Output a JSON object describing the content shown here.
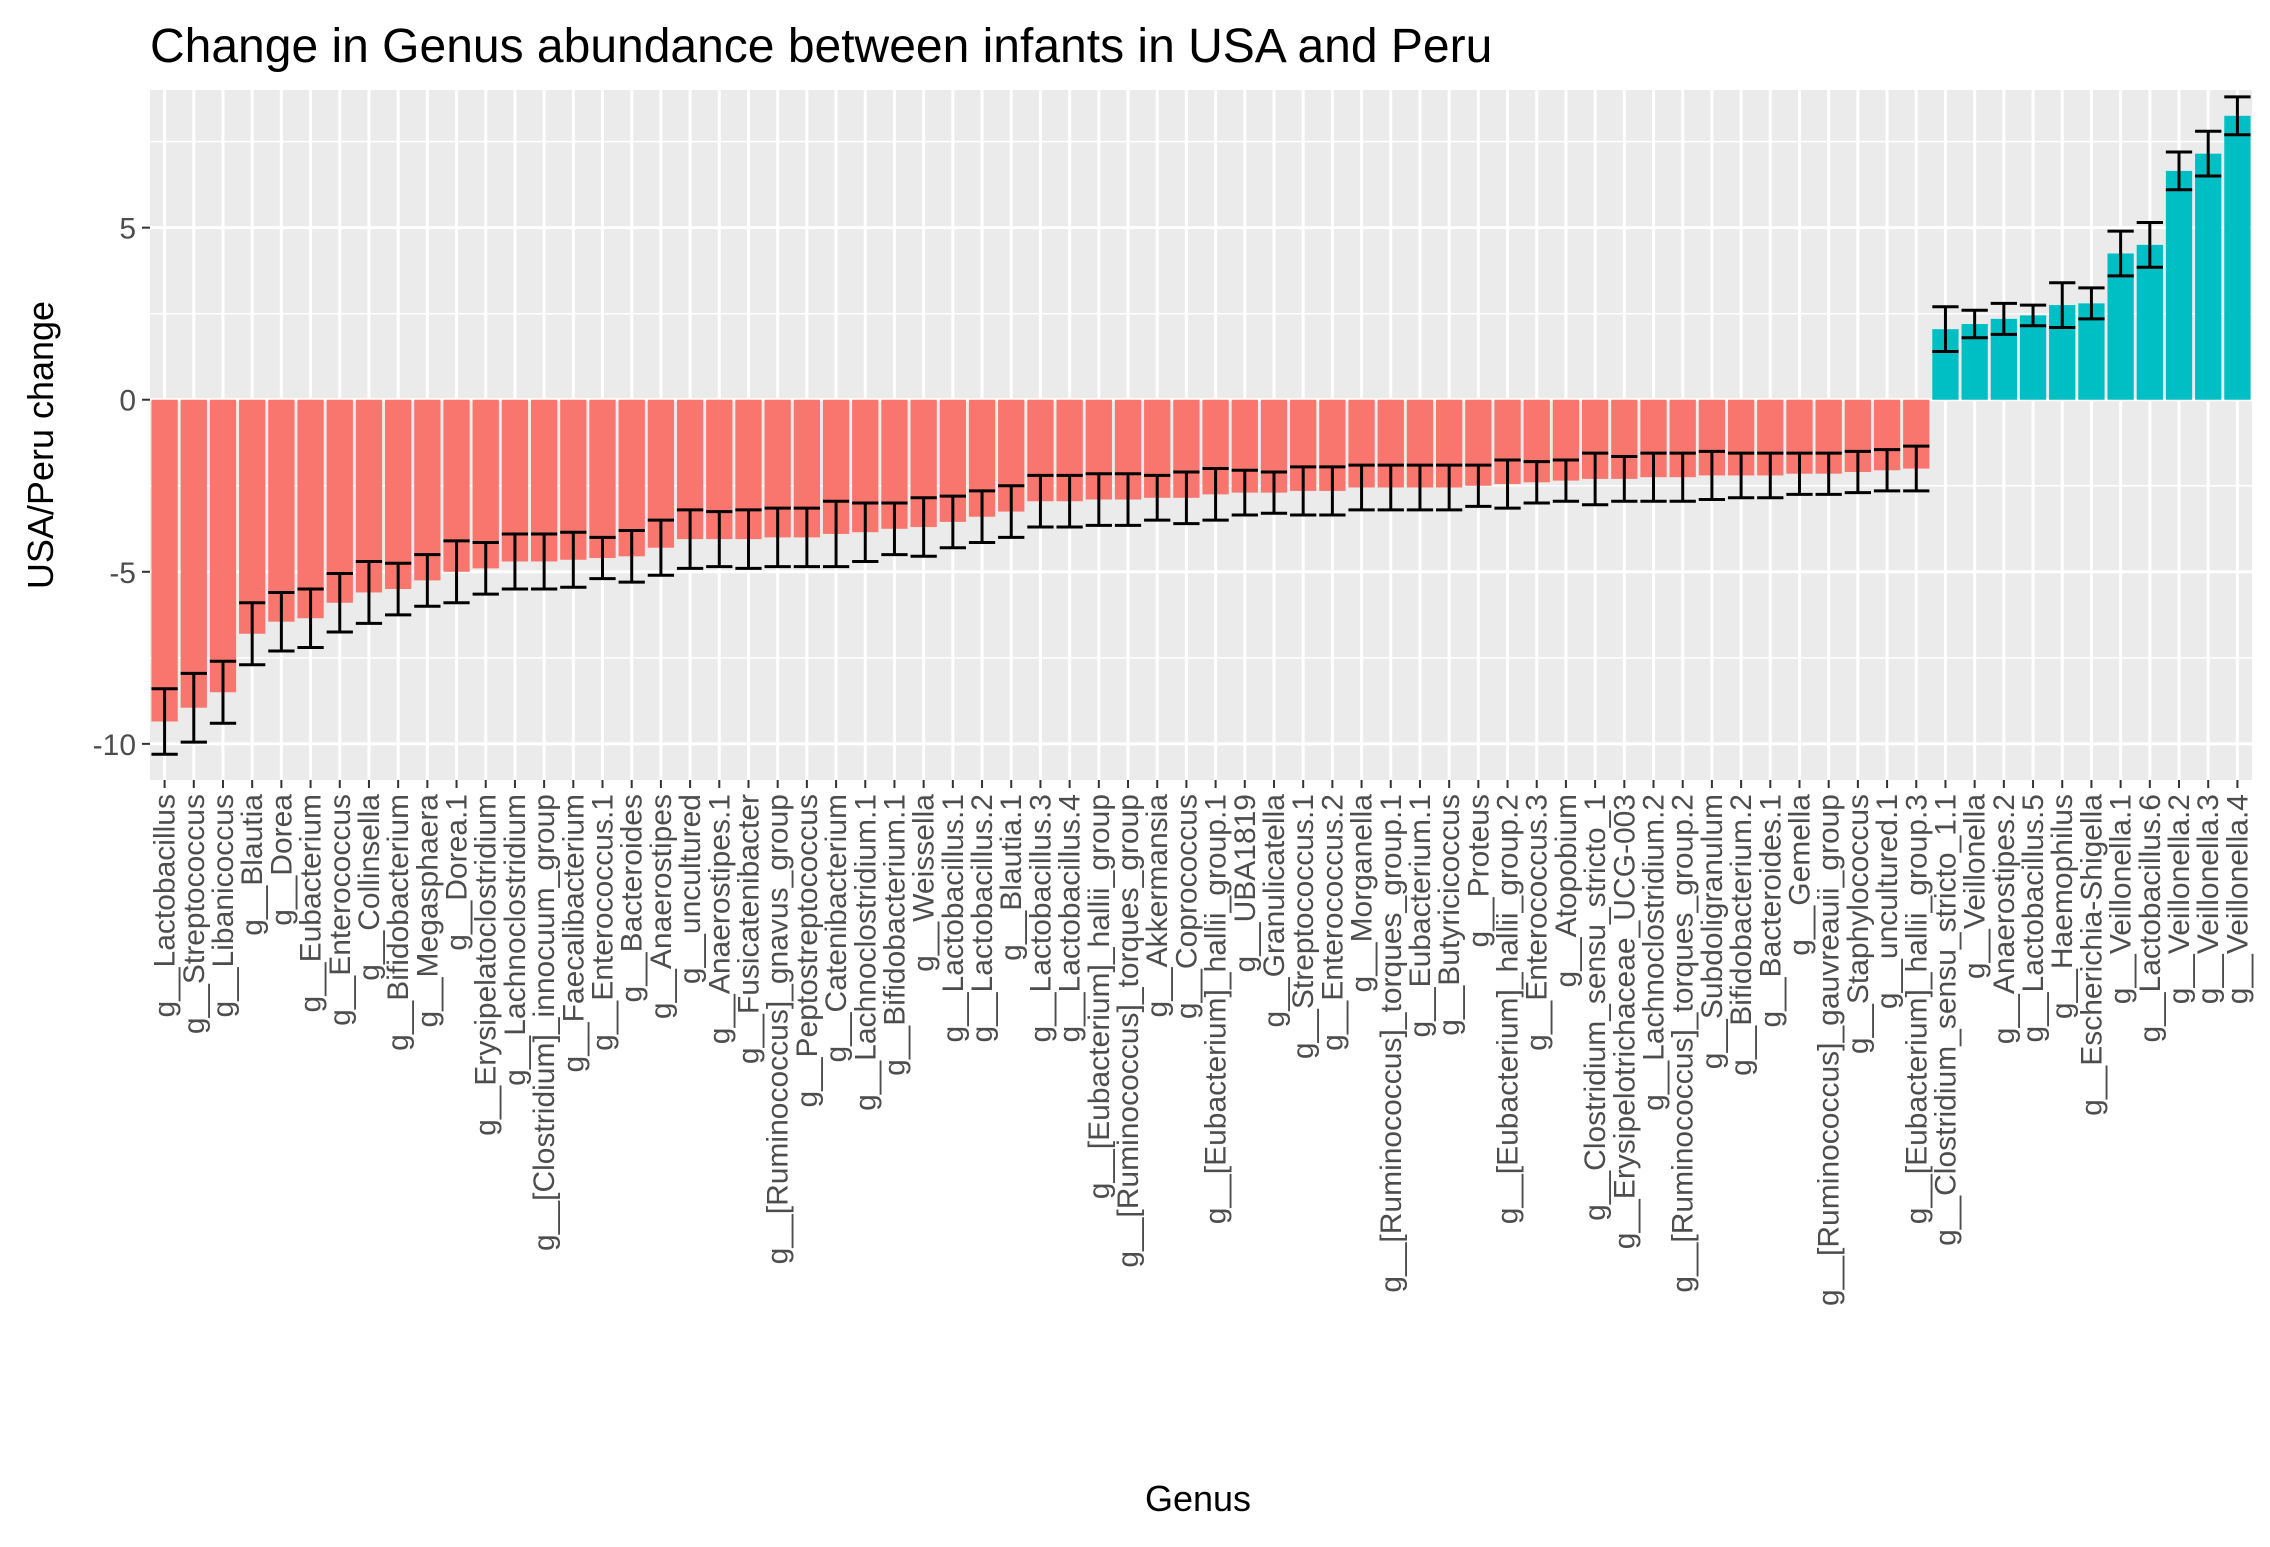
{
  "chart_data": {
    "type": "bar",
    "title": "Change in Genus abundance between infants in USA and Peru",
    "xlabel": "Genus",
    "ylabel": "USA/Peru change",
    "ylim": [
      -11.05,
      9.0
    ],
    "yticks": [
      -10,
      -5,
      0,
      5
    ],
    "grid": true,
    "legend": "none",
    "colors": {
      "negative": "#F8766D",
      "positive": "#00BFC4",
      "panel": "#EBEBEB",
      "grid": "#FFFFFF",
      "errorbar": "#000000"
    },
    "categories": [
      "g__Lactobacillus",
      "g__Streptococcus",
      "g__Libanicoccus",
      "g__Blautia",
      "g__Dorea",
      "g__Eubacterium",
      "g__Enterococcus",
      "g__Collinsella",
      "g__Bifidobacterium",
      "g__Megasphaera",
      "g__Dorea.1",
      "g__Erysipelatoclostridium",
      "g__Lachnoclostridium",
      "g__[Clostridium]_innocuum_group",
      "g__Faecalibacterium",
      "g__Enterococcus.1",
      "g__Bacteroides",
      "g__Anaerostipes",
      "g__uncultured",
      "g__Anaerostipes.1",
      "g__Fusicatenibacter",
      "g__[Ruminococcus]_gnavus_group",
      "g__Peptostreptococcus",
      "g__Catenibacterium",
      "g__Lachnoclostridium.1",
      "g__Bifidobacterium.1",
      "g__Weissella",
      "g__Lactobacillus.1",
      "g__Lactobacillus.2",
      "g__Blautia.1",
      "g__Lactobacillus.3",
      "g__Lactobacillus.4",
      "g__[Eubacterium]_hallii_group",
      "g__[Ruminococcus]_torques_group",
      "g__Akkermansia",
      "g__Coprococcus",
      "g__[Eubacterium]_hallii_group.1",
      "g__UBA1819",
      "g__Granulicatella",
      "g__Streptococcus.1",
      "g__Enterococcus.2",
      "g__Morganella",
      "g__[Ruminococcus]_torques_group.1",
      "g__Eubacterium.1",
      "g__Butyricicoccus",
      "g__Proteus",
      "g__[Eubacterium]_hallii_group.2",
      "g__Enterococcus.3",
      "g__Atopobium",
      "g__Clostridium_sensu_stricto_1",
      "g__Erysipelotrichaceae_UCG-003",
      "g__Lachnoclostridium.2",
      "g__[Ruminococcus]_torques_group.2",
      "g__Subdoligranulum",
      "g__Bifidobacterium.2",
      "g__Bacteroides.1",
      "g__Gemella",
      "g__[Ruminococcus]_gauvreauii_group",
      "g__Staphylococcus",
      "g__uncultured.1",
      "g__[Eubacterium]_hallii_group.3",
      "g__Clostridium_sensu_stricto_1.1",
      "g__Veillonella",
      "g__Anaerostipes.2",
      "g__Lactobacillus.5",
      "g__Haemophilus",
      "g__Escherichia-Shigella",
      "g__Veillonella.1",
      "g__Lactobacillus.6",
      "g__Veillonella.2",
      "g__Veillonella.3",
      "g__Veillonella.4"
    ],
    "values": [
      -9.35,
      -8.95,
      -8.5,
      -6.8,
      -6.45,
      -6.35,
      -5.9,
      -5.6,
      -5.5,
      -5.25,
      -5.0,
      -4.9,
      -4.7,
      -4.7,
      -4.65,
      -4.6,
      -4.55,
      -4.3,
      -4.05,
      -4.05,
      -4.05,
      -4.0,
      -4.0,
      -3.9,
      -3.85,
      -3.75,
      -3.7,
      -3.55,
      -3.4,
      -3.25,
      -2.95,
      -2.95,
      -2.9,
      -2.9,
      -2.85,
      -2.85,
      -2.75,
      -2.7,
      -2.7,
      -2.65,
      -2.65,
      -2.55,
      -2.55,
      -2.55,
      -2.55,
      -2.5,
      -2.45,
      -2.4,
      -2.35,
      -2.3,
      -2.3,
      -2.25,
      -2.25,
      -2.2,
      -2.2,
      -2.2,
      -2.15,
      -2.15,
      -2.1,
      -2.05,
      -2.0,
      2.05,
      2.2,
      2.35,
      2.45,
      2.75,
      2.8,
      4.25,
      4.5,
      6.65,
      7.15,
      8.25
    ],
    "errors": [
      0.95,
      1.0,
      0.9,
      0.9,
      0.85,
      0.85,
      0.85,
      0.9,
      0.75,
      0.75,
      0.9,
      0.75,
      0.8,
      0.8,
      0.8,
      0.6,
      0.75,
      0.8,
      0.85,
      0.8,
      0.85,
      0.85,
      0.85,
      0.95,
      0.85,
      0.75,
      0.85,
      0.75,
      0.75,
      0.75,
      0.75,
      0.75,
      0.75,
      0.75,
      0.65,
      0.75,
      0.75,
      0.65,
      0.6,
      0.7,
      0.7,
      0.65,
      0.65,
      0.65,
      0.65,
      0.6,
      0.7,
      0.6,
      0.6,
      0.75,
      0.65,
      0.7,
      0.7,
      0.7,
      0.65,
      0.65,
      0.6,
      0.6,
      0.6,
      0.6,
      0.65,
      0.65,
      0.4,
      0.45,
      0.3,
      0.65,
      0.45,
      0.65,
      0.65,
      0.55,
      0.65,
      0.55
    ]
  }
}
